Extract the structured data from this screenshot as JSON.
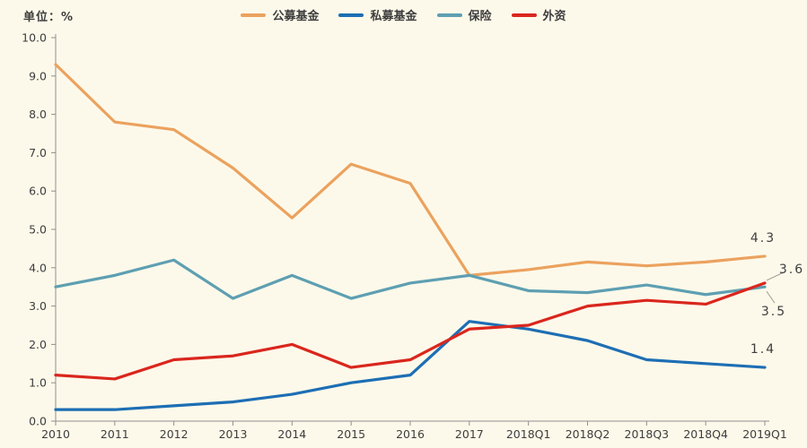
{
  "unit_label": "单位：%",
  "colors": {
    "background": "#FDF9EA",
    "axis": "#8F8F8F",
    "text": "#3D3D3D",
    "annotation_leader": "#AFA99C"
  },
  "chart_data": {
    "type": "line",
    "title": "",
    "unit": "%",
    "categories": [
      "2010",
      "2011",
      "2012",
      "2013",
      "2014",
      "2015",
      "2016",
      "2017",
      "2018Q1",
      "2018Q2",
      "2018Q3",
      "2018Q4",
      "2019Q1"
    ],
    "series": [
      {
        "name": "公募基金",
        "color": "#EBA25E",
        "values": [
          9.3,
          7.8,
          7.6,
          6.6,
          5.3,
          6.7,
          6.2,
          3.8,
          3.95,
          4.15,
          4.05,
          4.15,
          4.3
        ],
        "end_label": "4.3"
      },
      {
        "name": "私募基金",
        "color": "#1D6EB4",
        "values": [
          0.3,
          0.3,
          0.4,
          0.5,
          0.7,
          1.0,
          1.2,
          2.6,
          2.4,
          2.1,
          1.6,
          1.5,
          1.4
        ],
        "end_label": "1.4"
      },
      {
        "name": "保险",
        "color": "#5E9FB2",
        "values": [
          3.5,
          3.8,
          4.2,
          3.2,
          3.8,
          3.2,
          3.6,
          3.8,
          3.4,
          3.35,
          3.55,
          3.3,
          3.5
        ],
        "end_label": "3.5"
      },
      {
        "name": "外资",
        "color": "#DA261D",
        "values": [
          1.2,
          1.1,
          1.6,
          1.7,
          2.0,
          1.4,
          1.6,
          2.4,
          2.5,
          3.0,
          3.15,
          3.05,
          3.6
        ],
        "end_label": "3.6"
      }
    ],
    "ylim": [
      0,
      10
    ],
    "ytick_step": 1,
    "ytick_decimals": 1,
    "grid": false,
    "legend_position": "top"
  }
}
